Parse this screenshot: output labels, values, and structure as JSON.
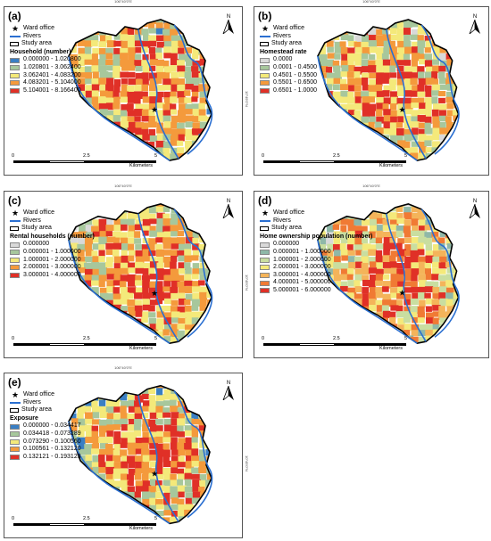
{
  "coord_top_label": "106°40'0\"E",
  "coord_side_label": "10°49'0\"N",
  "north_label": "N",
  "scale": {
    "ticks": [
      "0",
      "2.5",
      "5"
    ],
    "unit": "Kilometers"
  },
  "common_legend": {
    "ward_office": "Ward office",
    "rivers": "Rivers",
    "study_area": "Study area"
  },
  "panels": [
    {
      "label": "(a)",
      "legend_title": "Household (number)",
      "classes": [
        "0.000000 - 1.020800",
        "1.020801 - 3.062400",
        "3.062401 - 4.083200",
        "4.083201 - 5.104000",
        "5.104001 - 8.166400"
      ],
      "colors": [
        "#3a7fc4",
        "#a7c79c",
        "#f4e97a",
        "#f49a3c",
        "#e03027"
      ]
    },
    {
      "label": "(b)",
      "legend_title": "Homestead rate",
      "classes": [
        "0.0000",
        "0.0001 - 0.4500",
        "0.4501 - 0.5500",
        "0.5501 - 0.6500",
        "0.6501 - 1.0000"
      ],
      "colors": [
        "#d9d9d9",
        "#a7c79c",
        "#f4e97a",
        "#f49a3c",
        "#e03027"
      ]
    },
    {
      "label": "(c)",
      "legend_title": "Rental households (number)",
      "classes": [
        "0.000000",
        "0.000001 - 1.000000",
        "1.000001 - 2.000000",
        "2.000001 - 3.000000",
        "3.000001 - 4.000000"
      ],
      "colors": [
        "#d9d9d9",
        "#a7c79c",
        "#f4e97a",
        "#f49a3c",
        "#e03027"
      ]
    },
    {
      "label": "(d)",
      "legend_title": "Home ownership population (number)",
      "classes": [
        "0.000000",
        "0.000001 - 1.000000",
        "1.000001 - 2.000000",
        "2.000001 - 3.000000",
        "3.000001 - 4.000000",
        "4.000001 - 5.000000",
        "5.000001 - 6.000000"
      ],
      "colors": [
        "#d9d9d9",
        "#8fb8a8",
        "#c9dea0",
        "#f4e97a",
        "#f4b45a",
        "#f07a34",
        "#e03027"
      ]
    },
    {
      "label": "(e)",
      "legend_title": "Exposure",
      "classes": [
        "0.000000 - 0.034417",
        "0.034418 - 0.073289",
        "0.073290 - 0.100560",
        "0.100561 - 0.132120",
        "0.132121 - 0.193123"
      ],
      "colors": [
        "#3a7fc4",
        "#a7c79c",
        "#f4e97a",
        "#f49a3c",
        "#e03027"
      ]
    }
  ]
}
